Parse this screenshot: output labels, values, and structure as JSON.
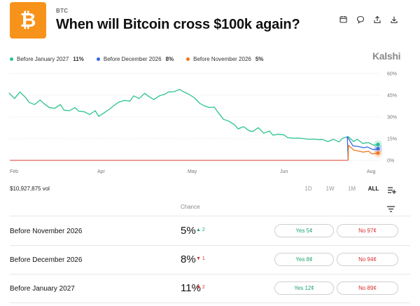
{
  "header": {
    "ticker": "BTC",
    "title": "When will Bitcoin cross $100k again?",
    "logo_symbol": "₿",
    "actions": [
      "calendar-icon",
      "comment-icon",
      "share-icon",
      "download-icon"
    ]
  },
  "colors": {
    "green": "#2bc48a",
    "blue": "#3467e8",
    "orange": "#f0761c",
    "red_line": "#e0645a",
    "brand_orange": "#f7931a"
  },
  "legend": [
    {
      "label": "Before January 2027",
      "value": "11%",
      "color": "#2bc48a"
    },
    {
      "label": "Before December 2026",
      "value": "8%",
      "color": "#3467e8"
    },
    {
      "label": "Before November 2026",
      "value": "5%",
      "color": "#f0761c"
    }
  ],
  "brand": "Kalshi",
  "chart_data": {
    "type": "line",
    "x_ticks": [
      "Feb",
      "Apr",
      "May",
      "Jun",
      "Aug"
    ],
    "y_ticks": [
      "60%",
      "45%",
      "30%",
      "15%",
      "0%"
    ],
    "ylim": [
      0,
      60
    ],
    "grid": true,
    "series": [
      {
        "name": "Before January 2027",
        "color": "#2bc48a",
        "values": [
          46,
          43,
          47,
          44,
          40,
          38,
          42,
          39,
          37,
          36,
          38,
          35,
          34,
          37,
          34,
          33,
          32,
          34,
          31,
          33,
          35,
          38,
          40,
          42,
          41,
          44,
          43,
          46,
          45,
          42,
          44,
          46,
          47,
          48,
          49,
          47,
          46,
          43,
          40,
          38,
          36,
          37,
          33,
          29,
          27,
          24,
          22,
          23,
          21,
          20,
          22,
          19,
          20,
          18,
          18,
          17,
          16,
          15,
          16,
          15,
          14,
          15,
          14,
          15,
          13,
          14,
          13,
          15,
          17,
          13,
          14,
          12,
          12,
          11,
          11
        ]
      },
      {
        "name": "Before December 2026",
        "color": "#3467e8",
        "values": [
          0,
          0,
          0,
          0,
          0,
          0,
          0,
          0,
          0,
          0,
          0,
          0,
          0,
          0,
          0,
          0,
          0,
          0,
          0,
          0,
          0,
          0,
          0,
          0,
          0,
          0,
          0,
          0,
          0,
          0,
          0,
          0,
          0,
          0,
          0,
          0,
          0,
          0,
          0,
          0,
          0,
          0,
          0,
          0,
          0,
          0,
          0,
          0,
          0,
          0,
          0,
          0,
          0,
          0,
          0,
          0,
          0,
          0,
          0,
          0,
          0,
          0,
          0,
          0,
          0,
          0,
          0,
          0,
          17,
          10,
          9,
          9,
          9,
          8,
          8
        ]
      },
      {
        "name": "Before November 2026",
        "color": "#f0761c",
        "values": [
          0,
          0,
          0,
          0,
          0,
          0,
          0,
          0,
          0,
          0,
          0,
          0,
          0,
          0,
          0,
          0,
          0,
          0,
          0,
          0,
          0,
          0,
          0,
          0,
          0,
          0,
          0,
          0,
          0,
          0,
          0,
          0,
          0,
          0,
          0,
          0,
          0,
          0,
          0,
          0,
          0,
          0,
          0,
          0,
          0,
          0,
          0,
          0,
          0,
          0,
          0,
          0,
          0,
          0,
          0,
          0,
          0,
          0,
          0,
          0,
          0,
          0,
          0,
          0,
          0,
          0,
          0,
          0,
          11,
          7,
          6,
          6,
          6,
          5,
          5
        ]
      }
    ]
  },
  "volume": "$10,927,875 vol",
  "ranges": [
    {
      "label": "1D",
      "active": false
    },
    {
      "label": "1W",
      "active": false
    },
    {
      "label": "1M",
      "active": false
    },
    {
      "label": "ALL",
      "active": true
    }
  ],
  "table": {
    "chance_header": "Chance",
    "rows": [
      {
        "label": "Before November 2026",
        "chance": "5%",
        "delta": "2",
        "direction": "up",
        "yes": "Yes 5¢",
        "no": "No 97¢"
      },
      {
        "label": "Before December 2026",
        "chance": "8%",
        "delta": "1",
        "direction": "down",
        "yes": "Yes 8¢",
        "no": "No 94¢"
      },
      {
        "label": "Before January 2027",
        "chance": "11%",
        "delta": "2",
        "direction": "down",
        "yes": "Yes 12¢",
        "no": "No 89¢"
      }
    ]
  }
}
